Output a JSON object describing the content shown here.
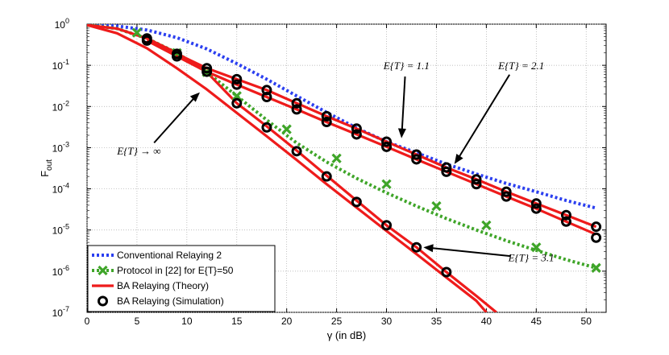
{
  "chart_data": {
    "type": "line",
    "title": "",
    "xlabel": "γ (in dB)",
    "ylabel_base": "F",
    "ylabel_sub": "out",
    "xlim": [
      0,
      52
    ],
    "ylim_log10": [
      -7,
      0
    ],
    "grid": true,
    "xticks": [
      0,
      5,
      10,
      15,
      20,
      25,
      30,
      35,
      40,
      45,
      50
    ],
    "xtick_labels": [
      "0",
      "5",
      "10",
      "15",
      "20",
      "25",
      "30",
      "35",
      "40",
      "45",
      "50"
    ],
    "yticks": [
      {
        "base": "10",
        "exp": "0",
        "value": 1
      },
      {
        "base": "10",
        "exp": "-1",
        "value": 0.1
      },
      {
        "base": "10",
        "exp": "-2",
        "value": 0.01
      },
      {
        "base": "10",
        "exp": "-3",
        "value": 0.001
      },
      {
        "base": "10",
        "exp": "-4",
        "value": 0.0001
      },
      {
        "base": "10",
        "exp": "-5",
        "value": 1e-05
      },
      {
        "base": "10",
        "exp": "-6",
        "value": 1e-06
      },
      {
        "base": "10",
        "exp": "-7",
        "value": 1e-07
      }
    ],
    "series": [
      {
        "name": "Conventional Relaying 2",
        "style": "dotted-line",
        "color": "#2b3ff0",
        "x": [
          0,
          3,
          6,
          9,
          12,
          15,
          18,
          21,
          24,
          27,
          30,
          33,
          36,
          39,
          42,
          45,
          48,
          51
        ],
        "y": [
          0.97,
          0.9,
          0.72,
          0.47,
          0.25,
          0.11,
          0.046,
          0.018,
          0.0072,
          0.003,
          0.0014,
          0.00075,
          0.0004,
          0.00023,
          0.000135,
          8.5e-05,
          5.2e-05,
          3.4e-05
        ]
      },
      {
        "name": "Protocol in [22] for E{T}=50",
        "style": "dotted-line-x-markers",
        "color": "#3fa529",
        "x": [
          0,
          3,
          6,
          9,
          12,
          15,
          18,
          21,
          24,
          27,
          30,
          33,
          36,
          39,
          42,
          45,
          48,
          51
        ],
        "y": [
          0.95,
          0.78,
          0.45,
          0.2,
          0.068,
          0.018,
          0.0047,
          0.0013,
          0.00045,
          0.00018,
          8e-05,
          3.8e-05,
          1.9e-05,
          1e-05,
          5.5e-06,
          3.2e-06,
          1.9e-06,
          1.2e-06
        ],
        "markers_x": [
          5,
          9,
          12,
          15,
          20,
          25,
          30,
          35,
          40,
          45,
          51
        ],
        "markers_y": [
          0.62,
          0.2,
          0.068,
          0.018,
          0.0028,
          0.00055,
          0.00013,
          3.8e-05,
          1.3e-05,
          3.8e-06,
          1.2e-06
        ]
      },
      {
        "name": "BA Relaying (Theory) E{T}=1.1",
        "style": "solid-line",
        "color": "#ee1b1b",
        "x": [
          6,
          9,
          12,
          15,
          18,
          21,
          24,
          27,
          30,
          33,
          36,
          39,
          42,
          45,
          48,
          51
        ],
        "y": [
          0.45,
          0.19,
          0.085,
          0.046,
          0.025,
          0.012,
          0.0058,
          0.0029,
          0.0014,
          0.00068,
          0.00033,
          0.00017,
          8.5e-05,
          4.4e-05,
          2.3e-05,
          1.2e-05
        ]
      },
      {
        "name": "BA Relaying (Theory) E{T}=2.1",
        "style": "solid-line",
        "color": "#ee1b1b",
        "x": [
          6,
          9,
          12,
          15,
          18,
          21,
          24,
          27,
          30,
          33,
          36,
          39,
          42,
          45,
          48,
          51
        ],
        "y": [
          0.4,
          0.165,
          0.07,
          0.034,
          0.017,
          0.0085,
          0.0042,
          0.0021,
          0.00105,
          0.00052,
          0.00026,
          0.00013,
          6.5e-05,
          3.3e-05,
          1.6e-05,
          7.8e-06
        ]
      },
      {
        "name": "BA Relaying (Theory) E{T}=3.1",
        "style": "solid-line",
        "color": "#ee1b1b",
        "x": [
          0,
          3,
          6,
          9,
          12,
          15,
          18,
          21,
          24,
          27,
          30,
          33,
          36,
          39,
          41
        ],
        "y": [
          0.95,
          0.78,
          0.45,
          0.2,
          0.068,
          0.012,
          0.0033,
          0.00085,
          0.00021,
          5.2e-05,
          1.3e-05,
          3.8e-06,
          9.5e-07,
          2.5e-07,
          1e-07
        ]
      },
      {
        "name": "BA Relaying (Theory) E{T}→∞",
        "style": "solid-line",
        "color": "#ee1b1b",
        "x": [
          0,
          3,
          6,
          9,
          12,
          15,
          18,
          21,
          24,
          27,
          30,
          33,
          36,
          39,
          40
        ],
        "y": [
          0.95,
          0.6,
          0.26,
          0.085,
          0.026,
          0.007,
          0.0019,
          0.0005,
          0.00013,
          3.5e-05,
          9.5e-06,
          2.6e-06,
          7e-07,
          1.9e-07,
          1e-07
        ]
      },
      {
        "name": "BA Relaying (Simulation)",
        "style": "circle-markers",
        "color": "#000000",
        "points": [
          [
            6,
            0.45
          ],
          [
            9,
            0.19
          ],
          [
            12,
            0.085
          ],
          [
            15,
            0.046
          ],
          [
            18,
            0.025
          ],
          [
            21,
            0.012
          ],
          [
            24,
            0.0058
          ],
          [
            27,
            0.0029
          ],
          [
            30,
            0.0014
          ],
          [
            33,
            0.00068
          ],
          [
            36,
            0.00033
          ],
          [
            39,
            0.00017
          ],
          [
            42,
            8.5e-05
          ],
          [
            45,
            4.4e-05
          ],
          [
            48,
            2.3e-05
          ],
          [
            51,
            1.2e-05
          ],
          [
            6,
            0.4
          ],
          [
            9,
            0.165
          ],
          [
            12,
            0.07
          ],
          [
            15,
            0.034
          ],
          [
            18,
            0.017
          ],
          [
            21,
            0.0085
          ],
          [
            24,
            0.0042
          ],
          [
            27,
            0.0021
          ],
          [
            30,
            0.00105
          ],
          [
            33,
            0.00052
          ],
          [
            36,
            0.00026
          ],
          [
            39,
            0.00013
          ],
          [
            42,
            6.5e-05
          ],
          [
            45,
            3.3e-05
          ],
          [
            48,
            1.6e-05
          ],
          [
            51,
            6.5e-06
          ],
          [
            15,
            0.012
          ],
          [
            18,
            0.0031
          ],
          [
            21,
            0.00082
          ],
          [
            24,
            0.0002
          ],
          [
            27,
            4.8e-05
          ],
          [
            30,
            1.3e-05
          ],
          [
            33,
            3.8e-06
          ],
          [
            36,
            9.5e-07
          ]
        ]
      }
    ],
    "legend": {
      "position": "bottom-left",
      "entries": [
        {
          "label": "Conventional Relaying 2",
          "swatch": "dotted",
          "color": "#2b3ff0"
        },
        {
          "label": "Protocol in [22] for E{T}=50",
          "swatch": "dotted-x",
          "color": "#3fa529"
        },
        {
          "label": "BA Relaying (Theory)",
          "swatch": "solid",
          "color": "#ee1b1b"
        },
        {
          "label": "BA Relaying (Simulation)",
          "swatch": "circle",
          "color": "#000000"
        }
      ]
    },
    "annotations": [
      {
        "label": "E{T} = 1.1",
        "text_x": 32,
        "text_y": 0.1,
        "arrow_to_x": 31.5,
        "arrow_to_y": 0.0017
      },
      {
        "label": "E{T} = 2.1",
        "text_x": 43.5,
        "text_y": 0.1,
        "arrow_to_x": 36.8,
        "arrow_to_y": 0.0004
      },
      {
        "label": "E{T} → ∞",
        "text_x": 5.2,
        "text_y": 0.00085,
        "arrow_to_x": 11.3,
        "arrow_to_y": 0.022
      },
      {
        "label": "E{T} = 3.1",
        "text_x": 44.5,
        "text_y": 2.2e-06,
        "arrow_to_x": 33.7,
        "arrow_to_y": 3.8e-06
      }
    ]
  }
}
